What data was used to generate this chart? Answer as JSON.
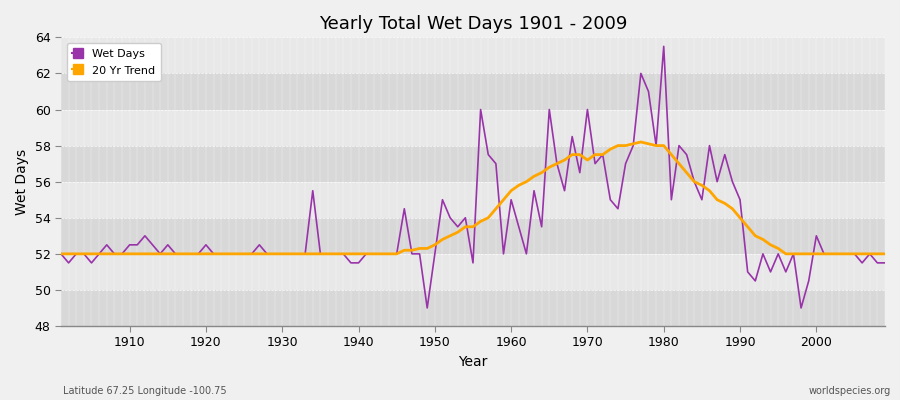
{
  "title": "Yearly Total Wet Days 1901 - 2009",
  "xlabel": "Year",
  "ylabel": "Wet Days",
  "footnote_left": "Latitude 67.25 Longitude -100.75",
  "footnote_right": "worldspecies.org",
  "wet_days_color": "#9933aa",
  "trend_color": "#ffa500",
  "fig_bg_color": "#f0f0f0",
  "band_color_light": "#e8e8e8",
  "band_color_dark": "#d8d8d8",
  "ylim": [
    48,
    64
  ],
  "xlim": [
    1901,
    2009
  ],
  "yticks": [
    48,
    50,
    52,
    54,
    56,
    58,
    60,
    62,
    64
  ],
  "years": [
    1901,
    1902,
    1903,
    1904,
    1905,
    1906,
    1907,
    1908,
    1909,
    1910,
    1911,
    1912,
    1913,
    1914,
    1915,
    1916,
    1917,
    1918,
    1919,
    1920,
    1921,
    1922,
    1923,
    1924,
    1925,
    1926,
    1927,
    1928,
    1929,
    1930,
    1931,
    1932,
    1933,
    1934,
    1935,
    1936,
    1937,
    1938,
    1939,
    1940,
    1941,
    1942,
    1943,
    1944,
    1945,
    1946,
    1947,
    1948,
    1949,
    1950,
    1951,
    1952,
    1953,
    1954,
    1955,
    1956,
    1957,
    1958,
    1959,
    1960,
    1961,
    1962,
    1963,
    1964,
    1965,
    1966,
    1967,
    1968,
    1969,
    1970,
    1971,
    1972,
    1973,
    1974,
    1975,
    1976,
    1977,
    1978,
    1979,
    1980,
    1981,
    1982,
    1983,
    1984,
    1985,
    1986,
    1987,
    1988,
    1989,
    1990,
    1991,
    1992,
    1993,
    1994,
    1995,
    1996,
    1997,
    1998,
    1999,
    2000,
    2001,
    2002,
    2003,
    2004,
    2005,
    2006,
    2007,
    2008,
    2009
  ],
  "wet_days": [
    52.0,
    51.5,
    52.0,
    52.0,
    51.5,
    52.0,
    52.5,
    52.0,
    52.0,
    52.5,
    52.5,
    53.0,
    52.5,
    52.0,
    52.5,
    52.0,
    52.0,
    52.0,
    52.0,
    52.5,
    52.0,
    52.0,
    52.0,
    52.0,
    52.0,
    52.0,
    52.5,
    52.0,
    52.0,
    52.0,
    52.0,
    52.0,
    52.0,
    55.5,
    52.0,
    52.0,
    52.0,
    52.0,
    51.5,
    51.5,
    52.0,
    52.0,
    52.0,
    52.0,
    52.0,
    54.5,
    52.0,
    52.0,
    49.0,
    52.0,
    55.0,
    54.0,
    53.5,
    54.0,
    51.5,
    60.0,
    57.5,
    57.0,
    52.0,
    55.0,
    53.5,
    52.0,
    55.5,
    53.5,
    60.0,
    57.0,
    55.5,
    58.5,
    56.5,
    60.0,
    57.0,
    57.5,
    55.0,
    54.5,
    57.0,
    58.0,
    62.0,
    61.0,
    58.0,
    63.5,
    55.0,
    58.0,
    57.5,
    56.0,
    55.0,
    58.0,
    56.0,
    57.5,
    56.0,
    55.0,
    51.0,
    50.5,
    52.0,
    51.0,
    52.0,
    51.0,
    52.0,
    49.0,
    50.5,
    53.0,
    52.0,
    52.0,
    52.0,
    52.0,
    52.0,
    51.5,
    52.0,
    51.5,
    51.5
  ],
  "trend_vals": [
    52.0,
    52.0,
    52.0,
    52.0,
    52.0,
    52.0,
    52.0,
    52.0,
    52.0,
    52.0,
    52.0,
    52.0,
    52.0,
    52.0,
    52.0,
    52.0,
    52.0,
    52.0,
    52.0,
    52.0,
    52.0,
    52.0,
    52.0,
    52.0,
    52.0,
    52.0,
    52.0,
    52.0,
    52.0,
    52.0,
    52.0,
    52.0,
    52.0,
    52.0,
    52.0,
    52.0,
    52.0,
    52.0,
    52.0,
    52.0,
    52.0,
    52.0,
    52.0,
    52.0,
    52.0,
    52.2,
    52.2,
    52.3,
    52.3,
    52.5,
    52.8,
    53.0,
    53.2,
    53.5,
    53.5,
    53.8,
    54.0,
    54.5,
    55.0,
    55.5,
    55.8,
    56.0,
    56.3,
    56.5,
    56.8,
    57.0,
    57.2,
    57.5,
    57.5,
    57.2,
    57.5,
    57.5,
    57.8,
    58.0,
    58.0,
    58.1,
    58.2,
    58.1,
    58.0,
    58.0,
    57.5,
    57.0,
    56.5,
    56.0,
    55.8,
    55.5,
    55.0,
    54.8,
    54.5,
    54.0,
    53.5,
    53.0,
    52.8,
    52.5,
    52.3,
    52.0,
    52.0,
    52.0,
    52.0,
    52.0,
    52.0,
    52.0,
    52.0,
    52.0,
    52.0,
    52.0,
    52.0,
    52.0,
    52.0
  ]
}
